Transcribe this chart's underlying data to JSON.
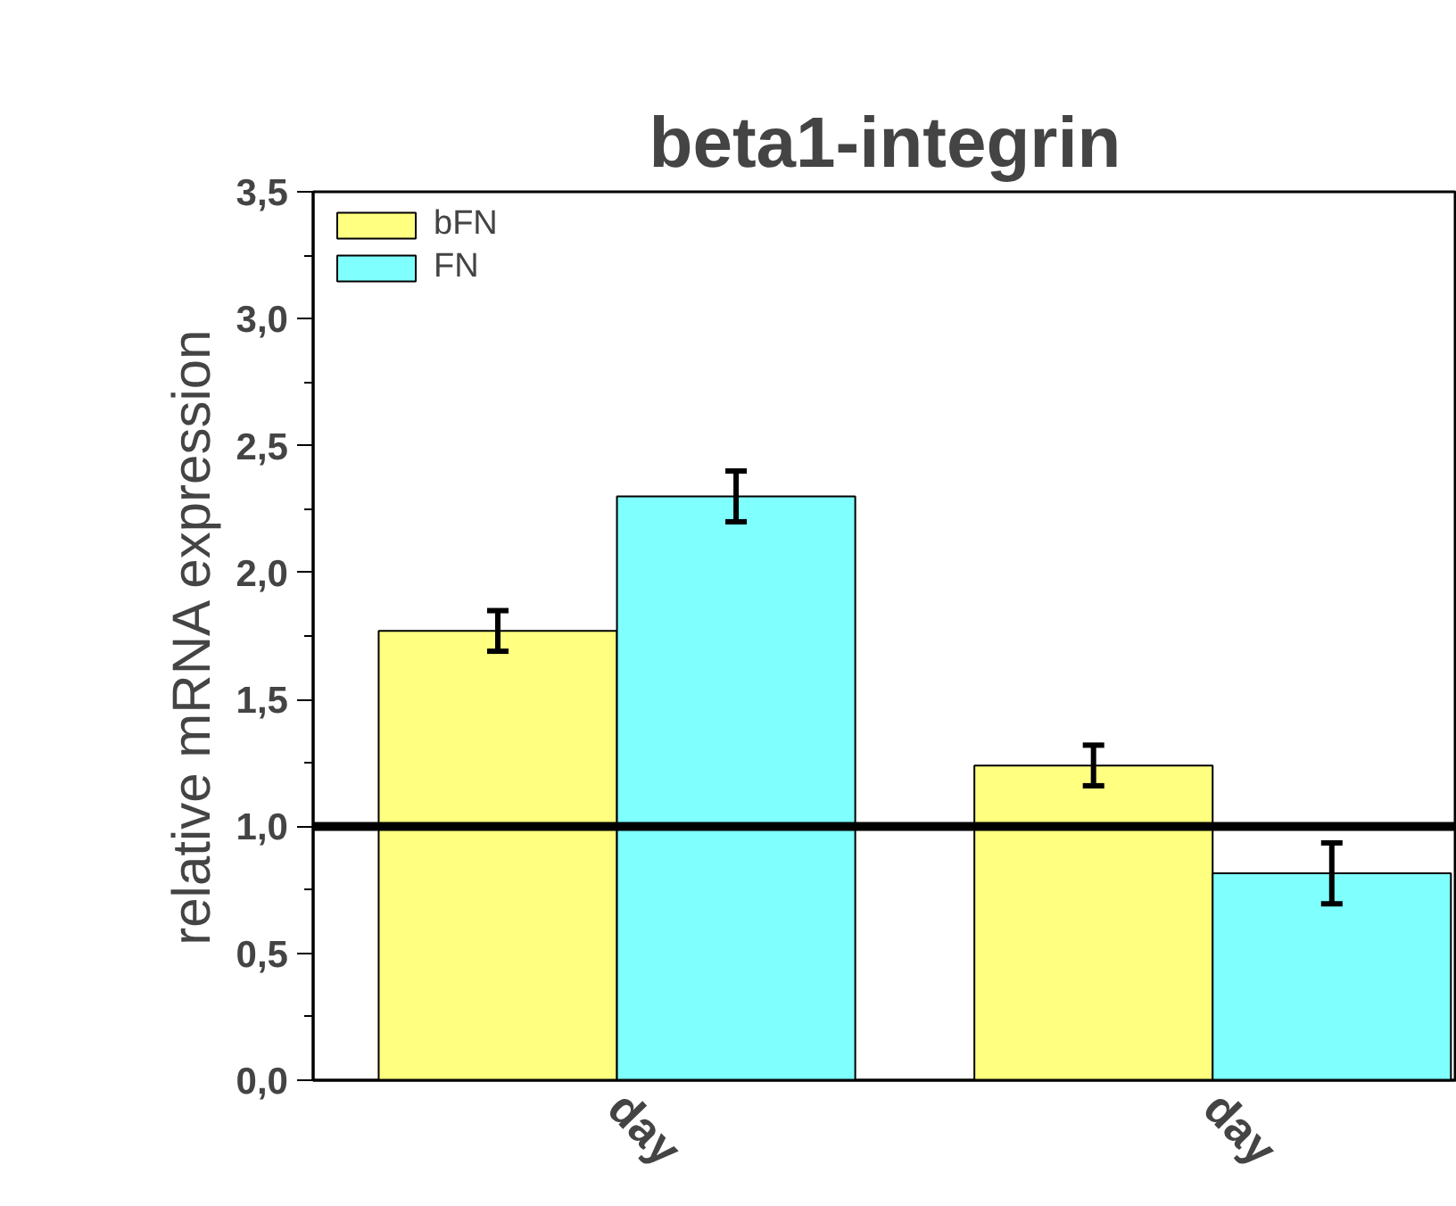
{
  "chart_data": {
    "type": "bar",
    "title": "beta1-integrin",
    "ylabel": "relative mRNA expression",
    "categories": [
      "day",
      "day"
    ],
    "series": [
      {
        "name": "bFN",
        "color": "#ffff80",
        "values": [
          1.77,
          1.24
        ],
        "errors": [
          0.08,
          0.08
        ]
      },
      {
        "name": "FN",
        "color": "#80ffff",
        "values": [
          2.3,
          0.815
        ],
        "errors": [
          0.1,
          0.12
        ]
      }
    ],
    "ylim": [
      0,
      3.5
    ],
    "yticks": [
      {
        "value": 0,
        "label": "0,0"
      },
      {
        "value": 0.25,
        "label": null
      },
      {
        "value": 0.5,
        "label": "0,5"
      },
      {
        "value": 0.75,
        "label": null
      },
      {
        "value": 1,
        "label": "1,0"
      },
      {
        "value": 1.25,
        "label": null
      },
      {
        "value": 1.5,
        "label": "1,5"
      },
      {
        "value": 1.75,
        "label": null
      },
      {
        "value": 2,
        "label": "2,0"
      },
      {
        "value": 2.25,
        "label": null
      },
      {
        "value": 2.5,
        "label": "2,5"
      },
      {
        "value": 2.75,
        "label": null
      },
      {
        "value": 3,
        "label": "3,0"
      },
      {
        "value": 3.25,
        "label": null
      },
      {
        "value": 3.5,
        "label": "3,5"
      }
    ],
    "ref_lines": [
      {
        "axis": "y",
        "value": 1.0,
        "color": "#000000"
      }
    ],
    "grid": false,
    "legend": "top left"
  }
}
